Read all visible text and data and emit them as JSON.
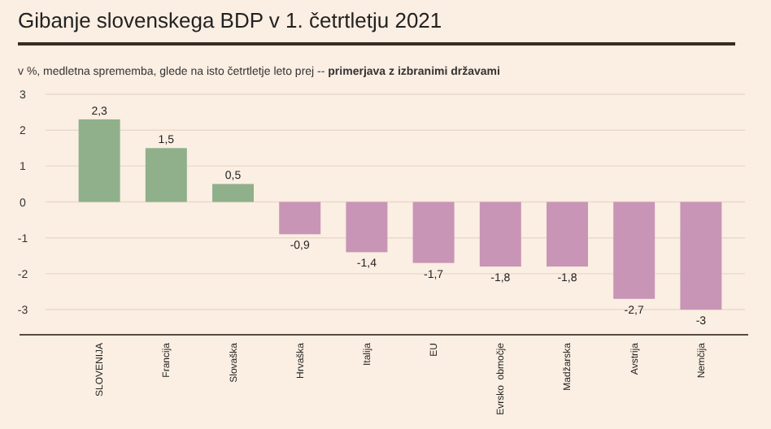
{
  "chart_data": {
    "type": "bar",
    "title": "Gibanje slovenskega BDP v 1. četrtletju 2021",
    "subtitle": "v %, medletna sprememba, glede na isto četrtletje leto prej -- primerjava z izbranimi državami",
    "categories": [
      "SLOVENIJA",
      "Francija",
      "Slovaška",
      "Hrvaška",
      "Italija",
      "EU",
      "Evrsko  območje",
      "Madžarska",
      "Avstrija",
      "Nemčija"
    ],
    "values": [
      2.3,
      1.5,
      0.5,
      -0.9,
      -1.4,
      -1.7,
      -1.8,
      -1.8,
      -2.7,
      -3
    ],
    "colors": [
      "#8fb08a",
      "#8fb08a",
      "#8fb08a",
      "#c895b6",
      "#c895b6",
      "#c895b6",
      "#c895b6",
      "#c895b6",
      "#c895b6",
      "#c895b6"
    ],
    "value_labels": [
      "2,3",
      "1,5",
      "0,5",
      "-0,9",
      "-1,4",
      "-1,7",
      "-1,8",
      "-1,8",
      "-2,7",
      "-3"
    ],
    "ylim": [
      -3.7,
      3
    ],
    "yticks": [
      3,
      2,
      1,
      0,
      -1,
      -2,
      -3
    ],
    "grid": "y"
  }
}
